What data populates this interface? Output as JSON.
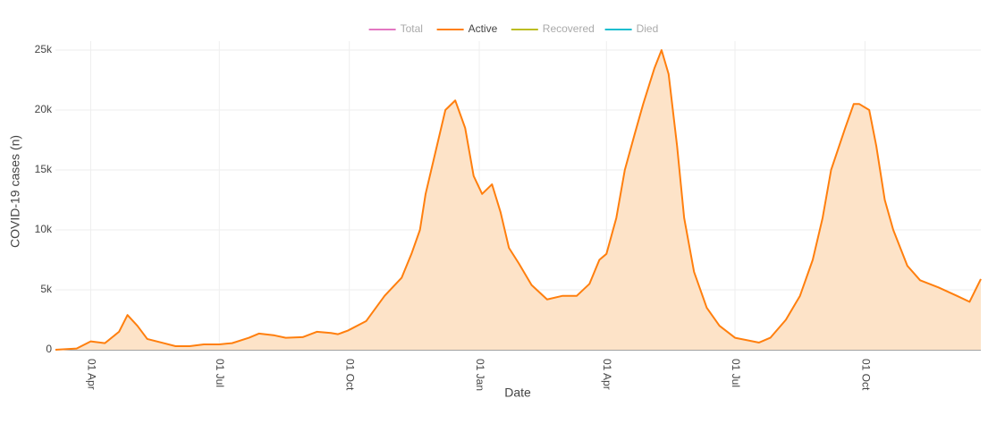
{
  "chart_data": {
    "type": "area",
    "x_label": "Date",
    "y_label": "COVID-19 cases (n)",
    "legend": [
      {
        "name": "Total",
        "color": "#e377c2",
        "visible": false
      },
      {
        "name": "Active",
        "color": "#ff7f0e",
        "visible": true
      },
      {
        "name": "Recovered",
        "color": "#bcbd22",
        "visible": false
      },
      {
        "name": "Died",
        "color": "#17becf",
        "visible": false
      }
    ],
    "x": [
      -25,
      -10,
      0,
      10,
      20,
      26,
      33,
      40,
      50,
      60,
      70,
      80,
      91,
      100,
      112,
      119,
      130,
      138,
      150,
      160,
      170,
      175,
      182,
      195,
      208,
      220,
      227,
      233,
      237,
      244,
      251,
      258,
      265,
      271,
      277,
      284,
      290,
      296,
      303,
      312,
      323,
      334,
      344,
      353,
      360,
      365,
      372,
      378,
      385,
      391,
      399,
      404,
      409,
      415,
      420,
      427,
      436,
      445,
      456,
      473,
      481,
      492,
      502,
      511,
      518,
      524,
      534,
      540,
      544,
      551,
      556,
      562,
      568,
      578,
      587,
      600,
      613,
      622,
      630
    ],
    "series": [
      {
        "name": "Active",
        "color": "#ff7f0e",
        "fill": "#fde3c8",
        "values": [
          0,
          100,
          700,
          550,
          1500,
          2900,
          2000,
          900,
          600,
          300,
          300,
          450,
          450,
          550,
          1000,
          1350,
          1200,
          1000,
          1050,
          1500,
          1400,
          1300,
          1600,
          2400,
          4500,
          6000,
          8000,
          10000,
          13000,
          16500,
          20000,
          20800,
          18500,
          14500,
          13000,
          13800,
          11500,
          8500,
          7200,
          5400,
          4200,
          4500,
          4500,
          5500,
          7500,
          8000,
          11000,
          15000,
          18000,
          20500,
          23500,
          25000,
          23000,
          17000,
          11000,
          6500,
          3500,
          2000,
          1000,
          600,
          1000,
          2500,
          4500,
          7500,
          11000,
          15000,
          18500,
          20500,
          20500,
          20000,
          17000,
          12500,
          10000,
          7000,
          5800,
          5200,
          4500,
          4000,
          5900
        ]
      }
    ],
    "xlim": [
      -25,
      630
    ],
    "xticks": [
      {
        "value": 0,
        "label": "01 Apr"
      },
      {
        "value": 91,
        "label": "01 Jul"
      },
      {
        "value": 183,
        "label": "01 Oct"
      },
      {
        "value": 275,
        "label": "01 Jan"
      },
      {
        "value": 365,
        "label": "01 Apr"
      },
      {
        "value": 456,
        "label": "01 Jul"
      },
      {
        "value": 548,
        "label": "01 Oct"
      }
    ],
    "ylim": [
      0,
      25000
    ],
    "yticks": [
      {
        "value": 0,
        "label": "0"
      },
      {
        "value": 5000,
        "label": "5k"
      },
      {
        "value": 10000,
        "label": "10k"
      },
      {
        "value": 15000,
        "label": "15k"
      },
      {
        "value": 20000,
        "label": "20k"
      },
      {
        "value": 25000,
        "label": "25k"
      }
    ],
    "grid": true
  }
}
